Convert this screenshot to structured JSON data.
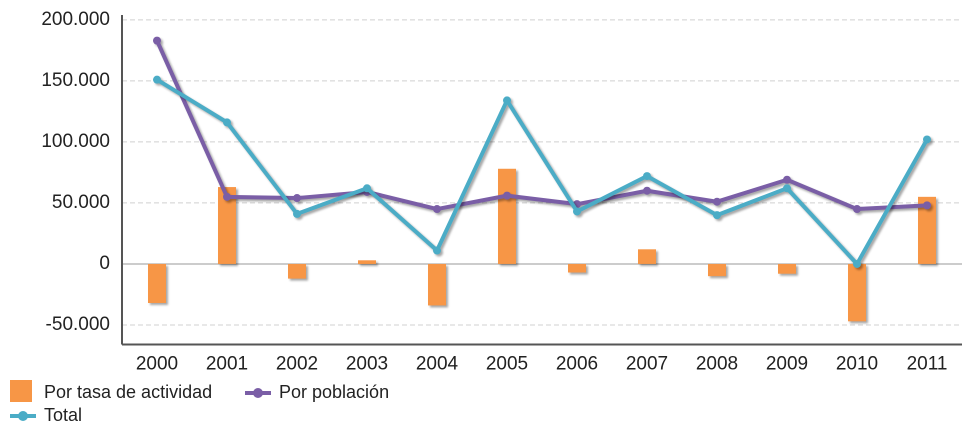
{
  "chart_data": {
    "type": "bar",
    "categories": [
      "2000",
      "2001",
      "2002",
      "2003",
      "2004",
      "2005",
      "2006",
      "2007",
      "2008",
      "2009",
      "2010",
      "2011"
    ],
    "series": [
      {
        "name": "Por tasa de actividad",
        "type": "bar",
        "color": "#f79646",
        "values": [
          -32000,
          63000,
          -12000,
          3000,
          -34000,
          78000,
          -7000,
          12000,
          -10000,
          -8000,
          -47000,
          55000
        ]
      },
      {
        "name": "Por población",
        "type": "line",
        "color": "#7a5ea6",
        "values": [
          183000,
          55000,
          54000,
          59000,
          45000,
          56000,
          49000,
          60000,
          51000,
          69000,
          45000,
          48000
        ]
      },
      {
        "name": "Total",
        "type": "line",
        "color": "#4bacc6",
        "values": [
          151000,
          116000,
          41000,
          62000,
          11000,
          134000,
          43000,
          72000,
          40000,
          62000,
          0,
          102000
        ]
      }
    ],
    "ylim": [
      -66000,
      204000
    ],
    "yticks": [
      {
        "value": -50000,
        "label": "-50.000"
      },
      0,
      {
        "value": 50000,
        "label": "50.000"
      },
      {
        "value": 100000,
        "label": "100.000"
      },
      {
        "value": 150000,
        "label": "150.000"
      },
      {
        "value": 200000,
        "label": "200.000"
      }
    ],
    "grid": true,
    "legend": "bottom-left"
  }
}
